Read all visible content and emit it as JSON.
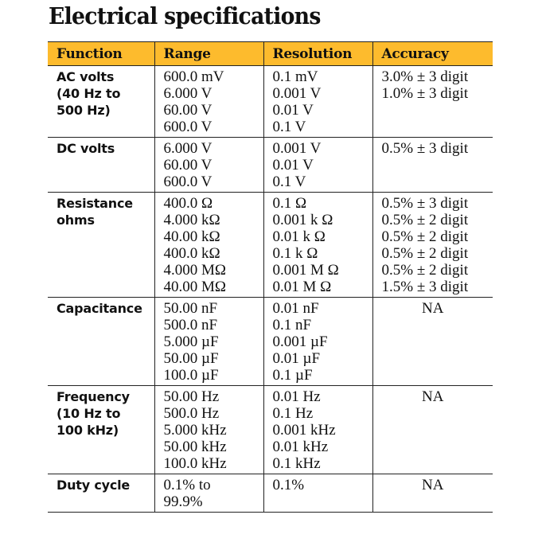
{
  "title": "Electrical specifications",
  "headers": [
    "Function",
    "Range",
    "Resolution",
    "Accuracy"
  ],
  "header_color": "#fdbb2d",
  "rows": [
    {
      "function": [
        "AC volts",
        "(40 Hz to",
        "500 Hz)"
      ],
      "range": [
        "600.0 mV",
        "6.000 V",
        "60.00 V",
        "600.0 V"
      ],
      "resolution": [
        "0.1 mV",
        "0.001 V",
        "0.01 V",
        "0.1 V"
      ],
      "accuracy": [
        "3.0% ± 3 digit",
        "1.0% ± 3 digit"
      ]
    },
    {
      "function": [
        "DC volts"
      ],
      "range": [
        "6.000 V",
        "60.00 V",
        "600.0 V"
      ],
      "resolution": [
        "0.001 V",
        "0.01 V",
        "0.1 V"
      ],
      "accuracy": [
        "0.5% ± 3 digit"
      ]
    },
    {
      "function": [
        "Resistance",
        "ohms"
      ],
      "range": [
        "400.0 Ω",
        "4.000 kΩ",
        "40.00 kΩ",
        "400.0 kΩ",
        "4.000 MΩ",
        "40.00 MΩ"
      ],
      "resolution": [
        "0.1 Ω",
        "0.001 k Ω",
        "0.01 k Ω",
        "0.1 k Ω",
        "0.001 M Ω",
        "0.01 M Ω"
      ],
      "accuracy": [
        "0.5% ± 3 digit",
        "0.5% ± 2 digit",
        "0.5% ± 2 digit",
        "0.5% ± 2 digit",
        "0.5% ± 2 digit",
        "1.5% ± 3 digit"
      ]
    },
    {
      "function": [
        "Capacitance"
      ],
      "range": [
        "50.00 nF",
        "500.0 nF",
        "5.000 µF",
        "50.00 µF",
        "100.0 µF"
      ],
      "resolution": [
        "0.01 nF",
        "0.1 nF",
        "0.001 µF",
        "0.01 µF",
        "0.1 µF"
      ],
      "accuracy": [
        "NA"
      ]
    },
    {
      "function": [
        "Frequency",
        "(10 Hz to",
        "100 kHz)"
      ],
      "range": [
        "50.00 Hz",
        "500.0 Hz",
        "5.000 kHz",
        "50.00 kHz",
        "100.0 kHz"
      ],
      "resolution": [
        "0.01 Hz",
        "0.1 Hz",
        "0.001 kHz",
        "0.01 kHz",
        "0.1 kHz"
      ],
      "accuracy": [
        "NA"
      ]
    },
    {
      "function": [
        "Duty cycle"
      ],
      "range": [
        "0.1% to",
        "99.9%"
      ],
      "resolution": [
        "0.1%"
      ],
      "accuracy": [
        "NA"
      ]
    }
  ]
}
